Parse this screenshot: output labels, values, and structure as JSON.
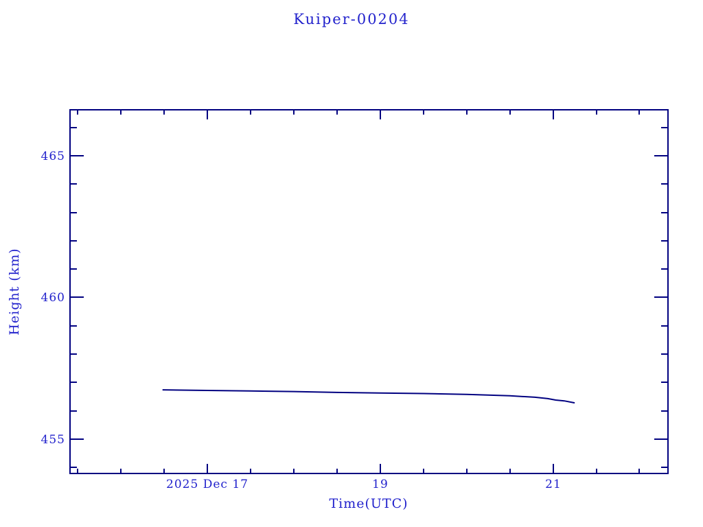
{
  "page": {
    "background": "#ffffff"
  },
  "colors": {
    "text": "#2222cc",
    "axis": "#000080",
    "line": "#000080",
    "background": "#ffffff"
  },
  "chart_data": {
    "type": "line",
    "title": "Kuiper-00204",
    "xlabel": "Time(UTC)",
    "ylabel": "Height (km)",
    "x_axis_date": "2025 Dec 17",
    "xlim_hours_utc": [
      15.41,
      22.33
    ],
    "ylim_km": [
      453.79,
      466.62
    ],
    "grid": false,
    "legend": false,
    "x_major_ticks": [
      {
        "hour": 17.0,
        "label": "2025 Dec 17"
      },
      {
        "hour": 19.0,
        "label": "19"
      },
      {
        "hour": 21.0,
        "label": "21"
      }
    ],
    "x_minor_ticks_hours": [
      15.5,
      16.0,
      16.5,
      17.5,
      18.0,
      18.5,
      19.5,
      20.0,
      20.5,
      21.5,
      22.0
    ],
    "y_major_ticks": [
      {
        "km": 455,
        "label": "455"
      },
      {
        "km": 460,
        "label": "460"
      },
      {
        "km": 465,
        "label": "465"
      }
    ],
    "y_minor_ticks_km": [
      454,
      456,
      457,
      458,
      459,
      461,
      462,
      463,
      464,
      466
    ],
    "series": [
      {
        "name": "satellite-height",
        "points_hour_km": [
          [
            16.48,
            456.74
          ],
          [
            17.0,
            456.72
          ],
          [
            17.5,
            456.7
          ],
          [
            18.0,
            456.68
          ],
          [
            18.5,
            456.65
          ],
          [
            19.0,
            456.63
          ],
          [
            19.5,
            456.61
          ],
          [
            20.0,
            456.58
          ],
          [
            20.5,
            456.53
          ],
          [
            20.79,
            456.48
          ],
          [
            20.94,
            456.43
          ],
          [
            21.03,
            456.38
          ],
          [
            21.13,
            456.35
          ],
          [
            21.25,
            456.28
          ]
        ]
      }
    ]
  }
}
